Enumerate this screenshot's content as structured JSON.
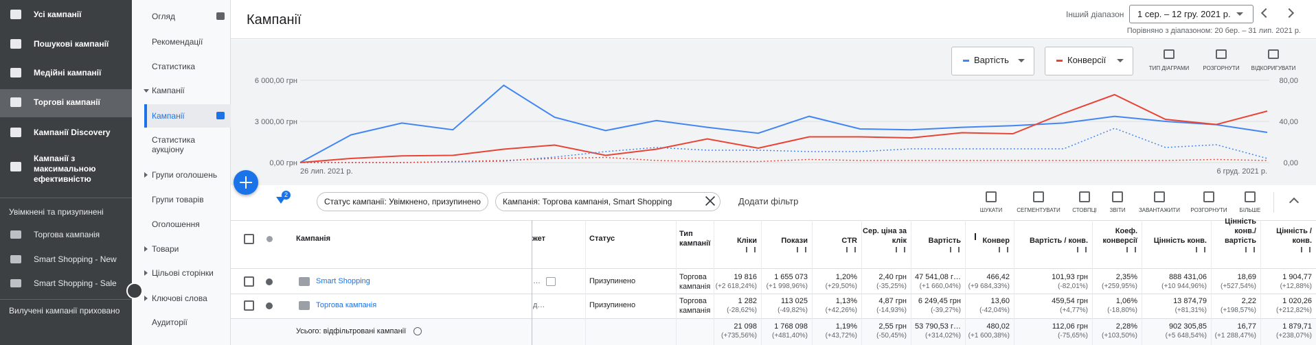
{
  "sidebar": {
    "items": [
      "Усі кампанії",
      "Пошукові кампанії",
      "Медійні кампанії",
      "Торгові кампанії",
      "Кампанії Discovery",
      "Кампанії з максимальною ефективністю"
    ],
    "section": "Увімкнені та призупинені",
    "campaigns": [
      "Торгова кампанія",
      "Smart Shopping - New",
      "Smart Shopping - Sale"
    ],
    "footer": "Вилучені кампанії приховано"
  },
  "nav": {
    "items": [
      "Огляд",
      "Рекомендації",
      "Статистика",
      "Кампанії",
      "Кампанії",
      "Статистика аукціону",
      "Групи оголошень",
      "Групи товарів",
      "Оголошення",
      "Товари",
      "Цільові сторінки",
      "Ключові слова",
      "Аудиторії"
    ]
  },
  "header": {
    "title": "Кампанії",
    "range_label": "Інший діапазон",
    "date_range": "1 сер. – 12 гру. 2021 р.",
    "comparison": "Порівняно з діапазоном: 20 бер. – 31 лип. 2021 р."
  },
  "chart": {
    "type": "line",
    "series": [
      {
        "name": "Вартість",
        "color": "#4285f4",
        "values": [
          0,
          2020,
          2880,
          2390,
          5630,
          3300,
          2330,
          3060,
          2570,
          2140,
          3370,
          2450,
          2390,
          2570,
          2690,
          2880,
          3370,
          3000,
          2760,
          2200
        ]
      },
      {
        "name": "Конверсії",
        "color": "#ea4335",
        "axis": "y2",
        "values": [
          0,
          4,
          6.5,
          7,
          13,
          17,
          7,
          13,
          23,
          14,
          25,
          25,
          24,
          29,
          28,
          48,
          66,
          42,
          37,
          50
        ]
      },
      {
        "color": "#4285f4",
        "dashed": true,
        "values": [
          0,
          0,
          0,
          50,
          100,
          400,
          800,
          1100,
          900,
          900,
          800,
          800,
          1000,
          1000,
          1000,
          1000,
          2500,
          1100,
          1300,
          300
        ]
      },
      {
        "color": "#ea4335",
        "dashed": true,
        "axis": "y2",
        "values": [
          0,
          0,
          0,
          1,
          2,
          4,
          5,
          2,
          1,
          1,
          3,
          2,
          2,
          2,
          2,
          2,
          2,
          2,
          3,
          2
        ]
      }
    ],
    "ylim": [
      0,
      6000
    ],
    "yticks": [
      {
        "value": 0,
        "label": "0,00 грн"
      },
      {
        "value": 3000,
        "label": "3 000,00 грн"
      },
      {
        "value": 6000,
        "label": "6 000,00 грн"
      }
    ],
    "y2lim": [
      0,
      80
    ],
    "y2ticks": [
      {
        "value": 0,
        "label": "0,00"
      },
      {
        "value": 40,
        "label": "40,00"
      },
      {
        "value": 80,
        "label": "80,00"
      }
    ],
    "x_labels": [
      "26 лип. 2021 р.",
      "6 груд. 2021 р."
    ],
    "controls": [
      "ТИП ДІАГРАМИ",
      "РОЗГОРНУТИ",
      "ВІДКОРИГУВАТИ"
    ]
  },
  "filters": {
    "badge": 2,
    "chips": [
      "Статус кампанії: Увімкнено, призупинено",
      "Кампанія: Торгова кампанія, Smart Shopping"
    ],
    "add": "Додати фільтр"
  },
  "toolbar": [
    "ШУКАТИ",
    "СЕГМЕНТУВАТИ",
    "СТОВПЦІ",
    "ЗВІТИ",
    "ЗАВАНТАЖИТИ",
    "РОЗГОРНУТИ",
    "БІЛЬШЕ"
  ],
  "table": {
    "headers": [
      "Кампанія",
      "жет",
      "Статус",
      "Тип кампанії",
      "Кліки",
      "Покази",
      "CTR",
      "Сер. ціна за клік",
      "Вартість",
      "Конвер",
      "Вартість / конв.",
      "Коеф. конверсії",
      "Цінність конв.",
      "Цінність конв./ вартість",
      "Цінність / конв."
    ],
    "rows": [
      {
        "campaign": "Smart Shopping",
        "budget": "…",
        "status": "Призупинено",
        "type": "Торгова кампанія",
        "metrics": [
          [
            "19 816",
            "(+2 618,24%)"
          ],
          [
            "1 655 073",
            "(+1 998,96%)"
          ],
          [
            "1,20%",
            "(+29,50%)"
          ],
          [
            "2,40 грн",
            "(-35,25%)"
          ],
          [
            "47 541,08 г…",
            "(+1 660,04%)"
          ],
          [
            "466,42",
            "(+9 684,33%)"
          ],
          [
            "101,93 грн",
            "(-82,01%)"
          ],
          [
            "2,35%",
            "(+259,95%)"
          ],
          [
            "888 431,06",
            "(+10 944,96%)"
          ],
          [
            "18,69",
            "(+527,54%)"
          ],
          [
            "1 904,77",
            "(+12,88%)"
          ]
        ]
      },
      {
        "campaign": "Торгова кампанія",
        "budget": "д…",
        "status": "Призупинено",
        "type": "Торгова кампанія",
        "metrics": [
          [
            "1 282",
            "(-28,62%)"
          ],
          [
            "113 025",
            "(-49,82%)"
          ],
          [
            "1,13%",
            "(+42,26%)"
          ],
          [
            "4,87 грн",
            "(-14,93%)"
          ],
          [
            "6 249,45 грн",
            "(-39,27%)"
          ],
          [
            "13,60",
            "(-42,04%)"
          ],
          [
            "459,54 грн",
            "(+4,77%)"
          ],
          [
            "1,06%",
            "(-18,80%)"
          ],
          [
            "13 874,79",
            "(+81,31%)"
          ],
          [
            "2,22",
            "(+198,57%)"
          ],
          [
            "1 020,26",
            "(+212,82%)"
          ]
        ]
      }
    ],
    "total": {
      "label": "Усього: відфільтровані кампанії",
      "metrics": [
        [
          "21 098",
          "(+735,56%)"
        ],
        [
          "1 768 098",
          "(+481,40%)"
        ],
        [
          "1,19%",
          "(+43,72%)"
        ],
        [
          "2,55 грн",
          "(-50,45%)"
        ],
        [
          "53 790,53 г…",
          "(+314,02%)"
        ],
        [
          "480,02",
          "(+1 600,38%)"
        ],
        [
          "112,06 грн",
          "(-75,65%)"
        ],
        [
          "2,28%",
          "(+103,50%)"
        ],
        [
          "902 305,85",
          "(+5 648,54%)"
        ],
        [
          "16,77",
          "(+1 288,47%)"
        ],
        [
          "1 879,71",
          "(+238,07%)"
        ]
      ]
    }
  }
}
